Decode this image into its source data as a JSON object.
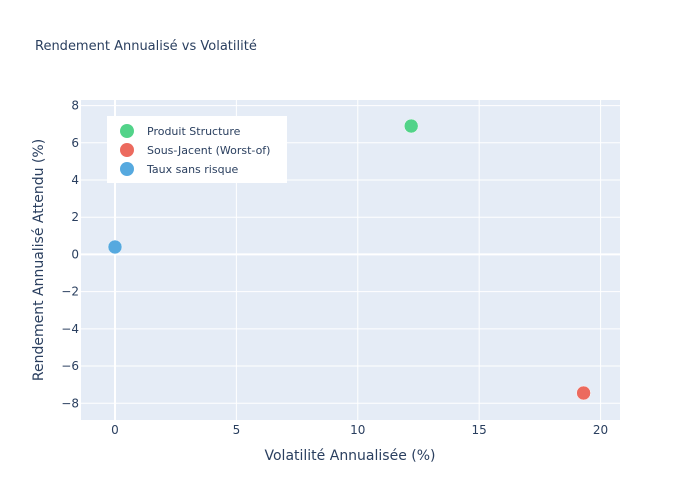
{
  "chart_data": {
    "type": "scatter",
    "title": "Rendement Annualisé vs Volatilité",
    "xlabel": "Volatilité Annualisée (%)",
    "ylabel": "Rendement Annualisé Attendu (%)",
    "xlim": [
      -1.4,
      20.8
    ],
    "ylim": [
      -8.9,
      8.3
    ],
    "xticks": [
      0,
      5,
      10,
      15,
      20
    ],
    "xtick_labels": [
      "0",
      "5",
      "10",
      "15",
      "20"
    ],
    "yticks": [
      -8,
      -6,
      -4,
      -2,
      0,
      2,
      4,
      6,
      8
    ],
    "ytick_labels": [
      "−8",
      "−6",
      "−4",
      "−2",
      "0",
      "2",
      "4",
      "6",
      "8"
    ],
    "grid": true,
    "legend_position": "top-left",
    "series": [
      {
        "name": "Produit Structure",
        "color": "#52d389",
        "points": [
          {
            "x": 12.2,
            "y": 6.9
          }
        ]
      },
      {
        "name": "Sous-Jacent (Worst-of)",
        "color": "#ec6a5e",
        "points": [
          {
            "x": 19.3,
            "y": -7.45
          }
        ]
      },
      {
        "name": "Taux sans risque",
        "color": "#56a9df",
        "points": [
          {
            "x": 0.0,
            "y": 0.4
          }
        ]
      }
    ],
    "colors": {
      "plot_background": "#e5ecf6",
      "grid": "#ffffff",
      "text": "#2a3f5f"
    }
  }
}
